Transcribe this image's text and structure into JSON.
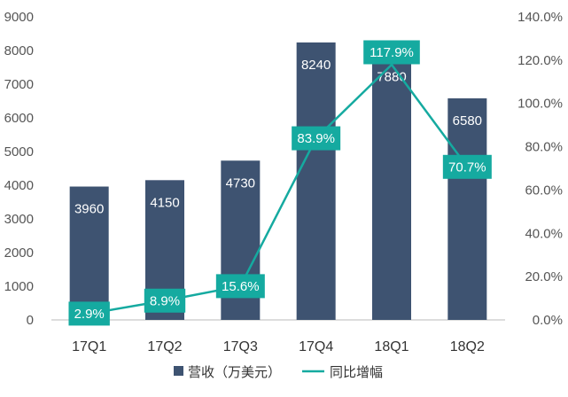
{
  "colors": {
    "bar": "#3e5371",
    "line": "#15aaa0",
    "label_box": "#15aaa0",
    "axis": "#bbbbbb",
    "tick_text": "#555555"
  },
  "chart_data": {
    "type": "bar",
    "categories": [
      "17Q1",
      "17Q2",
      "17Q3",
      "17Q4",
      "18Q1",
      "18Q2"
    ],
    "series": [
      {
        "name": "营收（万美元）",
        "type": "bar",
        "axis": "left",
        "values": [
          3960,
          4150,
          4730,
          8240,
          7880,
          6580
        ],
        "labels": [
          "3960",
          "4150",
          "4730",
          "8240",
          "7880",
          "6580"
        ]
      },
      {
        "name": "同比增幅",
        "type": "line",
        "axis": "right",
        "values": [
          2.9,
          8.9,
          15.6,
          83.9,
          117.9,
          70.7
        ],
        "labels": [
          "2.9%",
          "8.9%",
          "15.6%",
          "83.9%",
          "117.9%",
          "70.7%"
        ]
      }
    ],
    "y_left": {
      "min": 0,
      "max": 9000,
      "ticks": [
        "0",
        "1000",
        "2000",
        "3000",
        "4000",
        "5000",
        "6000",
        "7000",
        "8000",
        "9000"
      ]
    },
    "y_right": {
      "min": 0,
      "max": 140,
      "ticks": [
        "0.0%",
        "20.0%",
        "40.0%",
        "60.0%",
        "80.0%",
        "100.0%",
        "120.0%",
        "140.0%"
      ]
    },
    "grid": false,
    "legend": "bottom"
  }
}
